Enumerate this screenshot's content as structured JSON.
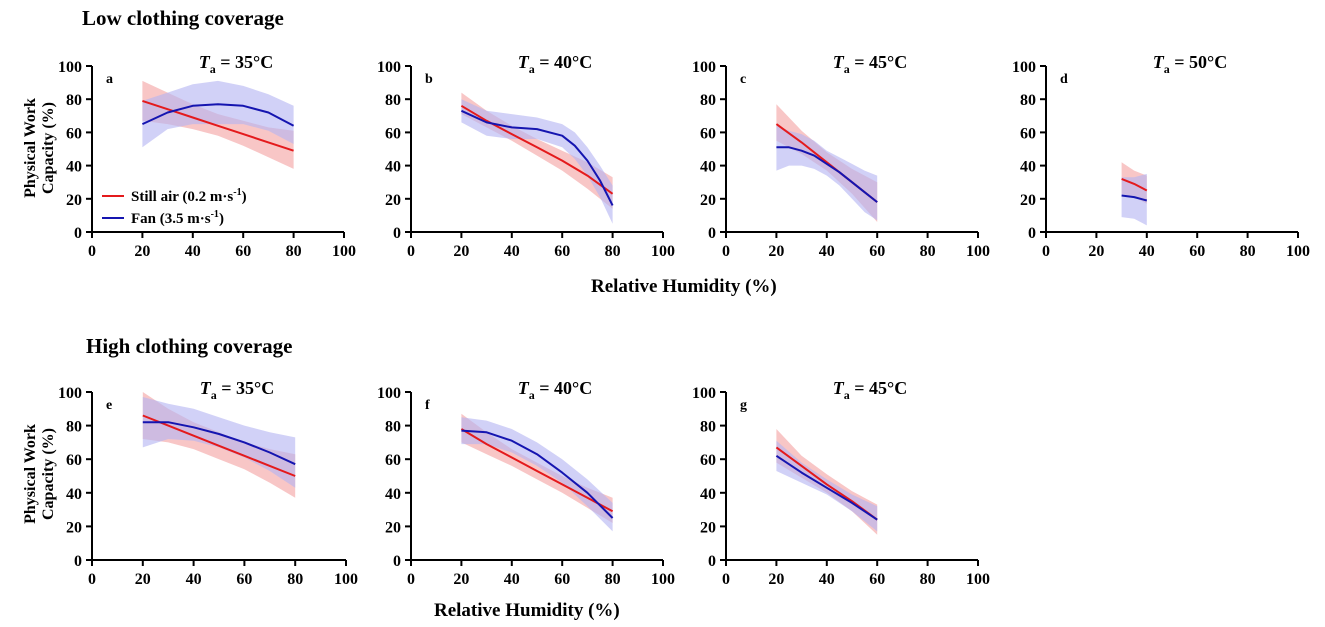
{
  "rows": [
    {
      "title": "Low clothing coverage",
      "ylabel_line1": "Physical Work",
      "ylabel_line2": "Capacity  (%)",
      "xlabel": "Relative Humidity  (%)"
    },
    {
      "title": "High clothing coverage",
      "ylabel_line1": "Physical Work",
      "ylabel_line2": "Capacity  (%)",
      "xlabel": "Relative Humidity  (%)"
    }
  ],
  "colors": {
    "still_air": "#e41a1c",
    "fan": "#1515b0",
    "still_air_band": "#f4a3a3",
    "fan_band": "#b4b4f2"
  },
  "legend": {
    "still_air_prefix": "Still air (0.2 m·s",
    "fan_prefix": "Fan (3.5 m·s",
    "superscript": "-1",
    "suffix": ")"
  },
  "chart_data": [
    {
      "type": "line",
      "panel": "a",
      "title_prefix": "T",
      "title_sub": "a",
      "title_rest": " = 35°C",
      "xlim": [
        0,
        100
      ],
      "ylim": [
        0,
        100
      ],
      "xticks": [
        0,
        20,
        40,
        60,
        80,
        100
      ],
      "yticks": [
        0,
        20,
        40,
        60,
        80,
        100
      ],
      "series": [
        {
          "name": "Still air (0.2 m·s-1)",
          "x": [
            20,
            30,
            40,
            50,
            60,
            70,
            80
          ],
          "y": [
            79,
            74,
            69,
            64,
            59,
            54,
            49
          ],
          "lower": [
            67,
            65,
            62,
            58,
            52,
            45,
            38
          ],
          "upper": [
            91,
            84,
            77,
            71,
            67,
            63,
            61
          ]
        },
        {
          "name": "Fan (3.5 m·s-1)",
          "x": [
            20,
            30,
            40,
            50,
            60,
            70,
            80
          ],
          "y": [
            65,
            72,
            76,
            77,
            76,
            72,
            64
          ],
          "lower": [
            51,
            62,
            65,
            65,
            65,
            61,
            53
          ],
          "upper": [
            79,
            84,
            89,
            91,
            88,
            83,
            76
          ]
        }
      ]
    },
    {
      "type": "line",
      "panel": "b",
      "title_prefix": "T",
      "title_sub": "a",
      "title_rest": " = 40°C",
      "xlim": [
        0,
        100
      ],
      "ylim": [
        0,
        100
      ],
      "xticks": [
        0,
        20,
        40,
        60,
        80,
        100
      ],
      "yticks": [
        0,
        20,
        40,
        60,
        80,
        100
      ],
      "series": [
        {
          "name": "Still air (0.2 m·s-1)",
          "x": [
            20,
            30,
            40,
            50,
            60,
            70,
            80
          ],
          "y": [
            76,
            67,
            59,
            51,
            43,
            34,
            23
          ],
          "lower": [
            71,
            63,
            55,
            46,
            37,
            26,
            14
          ],
          "upper": [
            84,
            73,
            64,
            56,
            49,
            42,
            33
          ]
        },
        {
          "name": "Fan (3.5 m·s-1)",
          "x": [
            20,
            30,
            40,
            50,
            60,
            65,
            70,
            75,
            80
          ],
          "y": [
            73,
            66,
            63,
            62,
            58,
            52,
            43,
            31,
            16
          ],
          "lower": [
            66,
            58,
            56,
            56,
            51,
            44,
            34,
            21,
            5
          ],
          "upper": [
            80,
            73,
            71,
            69,
            65,
            60,
            51,
            40,
            28
          ]
        }
      ]
    },
    {
      "type": "line",
      "panel": "c",
      "title_prefix": "T",
      "title_sub": "a",
      "title_rest": " = 45°C",
      "xlim": [
        0,
        100
      ],
      "ylim": [
        0,
        100
      ],
      "xticks": [
        0,
        20,
        40,
        60,
        80,
        100
      ],
      "yticks": [
        0,
        20,
        40,
        60,
        80,
        100
      ],
      "series": [
        {
          "name": "Still air (0.2 m·s-1)",
          "x": [
            20,
            30,
            40,
            50,
            60
          ],
          "y": [
            65,
            54,
            42,
            30,
            18
          ],
          "lower": [
            55,
            47,
            37,
            23,
            6
          ],
          "upper": [
            77,
            61,
            48,
            38,
            30
          ]
        },
        {
          "name": "Fan (3.5 m·s-1)",
          "x": [
            20,
            25,
            30,
            35,
            40,
            45,
            50,
            55,
            60
          ],
          "y": [
            51,
            51,
            49,
            46,
            41,
            36,
            30,
            24,
            18
          ],
          "lower": [
            37,
            40,
            40,
            38,
            34,
            28,
            20,
            12,
            7
          ],
          "upper": [
            64,
            61,
            59,
            55,
            49,
            45,
            41,
            37,
            34
          ]
        }
      ]
    },
    {
      "type": "line",
      "panel": "d",
      "title_prefix": "T",
      "title_sub": "a",
      "title_rest": " = 50°C",
      "xlim": [
        0,
        100
      ],
      "ylim": [
        0,
        100
      ],
      "xticks": [
        0,
        20,
        40,
        60,
        80,
        100
      ],
      "yticks": [
        0,
        20,
        40,
        60,
        80,
        100
      ],
      "series": [
        {
          "name": "Still air (0.2 m·s-1)",
          "x": [
            30,
            35,
            40
          ],
          "y": [
            32,
            29,
            25
          ],
          "lower": [
            23,
            21,
            17
          ],
          "upper": [
            42,
            37,
            34
          ]
        },
        {
          "name": "Fan (3.5 m·s-1)",
          "x": [
            30,
            35,
            40
          ],
          "y": [
            22,
            21,
            19
          ],
          "lower": [
            9,
            8,
            4
          ],
          "upper": [
            33,
            33,
            35
          ]
        }
      ]
    },
    {
      "type": "line",
      "panel": "e",
      "title_prefix": "T",
      "title_sub": "a",
      "title_rest": " = 35°C",
      "xlim": [
        0,
        100
      ],
      "ylim": [
        0,
        100
      ],
      "xticks": [
        0,
        20,
        40,
        60,
        80,
        100
      ],
      "yticks": [
        0,
        20,
        40,
        60,
        80,
        100
      ],
      "series": [
        {
          "name": "Still air (0.2 m·s-1)",
          "x": [
            20,
            30,
            40,
            50,
            60,
            70,
            80
          ],
          "y": [
            86,
            80,
            74,
            68,
            62,
            56,
            50
          ],
          "lower": [
            72,
            70,
            66,
            60,
            54,
            46,
            37
          ],
          "upper": [
            100,
            90,
            82,
            76,
            70,
            66,
            63
          ]
        },
        {
          "name": "Fan (3.5 m·s-1)",
          "x": [
            20,
            30,
            40,
            50,
            60,
            70,
            80
          ],
          "y": [
            82,
            82,
            79,
            75,
            70,
            64,
            57
          ],
          "lower": [
            67,
            72,
            71,
            67,
            61,
            53,
            43
          ],
          "upper": [
            97,
            93,
            90,
            85,
            80,
            76,
            73
          ]
        }
      ]
    },
    {
      "type": "line",
      "panel": "f",
      "title_prefix": "T",
      "title_sub": "a",
      "title_rest": " = 40°C",
      "xlim": [
        0,
        100
      ],
      "ylim": [
        0,
        100
      ],
      "xticks": [
        0,
        20,
        40,
        60,
        80,
        100
      ],
      "yticks": [
        0,
        20,
        40,
        60,
        80,
        100
      ],
      "series": [
        {
          "name": "Still air (0.2 m·s-1)",
          "x": [
            20,
            30,
            40,
            50,
            60,
            70,
            80
          ],
          "y": [
            78,
            69,
            61,
            53,
            45,
            37,
            29
          ],
          "lower": [
            70,
            63,
            56,
            48,
            40,
            31,
            22
          ],
          "upper": [
            87,
            76,
            66,
            58,
            50,
            43,
            37
          ]
        },
        {
          "name": "Fan (3.5 m·s-1)",
          "x": [
            20,
            30,
            40,
            50,
            60,
            70,
            80
          ],
          "y": [
            77,
            76,
            71,
            63,
            52,
            40,
            25
          ],
          "lower": [
            69,
            69,
            64,
            56,
            46,
            32,
            17
          ],
          "upper": [
            85,
            83,
            78,
            70,
            60,
            48,
            34
          ]
        }
      ]
    },
    {
      "type": "line",
      "panel": "g",
      "title_prefix": "T",
      "title_sub": "a",
      "title_rest": " = 45°C",
      "xlim": [
        0,
        100
      ],
      "ylim": [
        0,
        100
      ],
      "xticks": [
        0,
        20,
        40,
        60,
        80,
        100
      ],
      "yticks": [
        0,
        20,
        40,
        60,
        80,
        100
      ],
      "series": [
        {
          "name": "Still air (0.2 m·s-1)",
          "x": [
            20,
            30,
            40,
            50,
            60
          ],
          "y": [
            67,
            56,
            45,
            35,
            24
          ],
          "lower": [
            58,
            49,
            40,
            29,
            15
          ],
          "upper": [
            78,
            62,
            51,
            41,
            33
          ]
        },
        {
          "name": "Fan (3.5 m·s-1)",
          "x": [
            20,
            30,
            40,
            50,
            60
          ],
          "y": [
            62,
            52,
            43,
            34,
            24
          ],
          "lower": [
            53,
            46,
            39,
            29,
            17
          ],
          "upper": [
            71,
            58,
            48,
            39,
            32
          ]
        }
      ]
    }
  ]
}
